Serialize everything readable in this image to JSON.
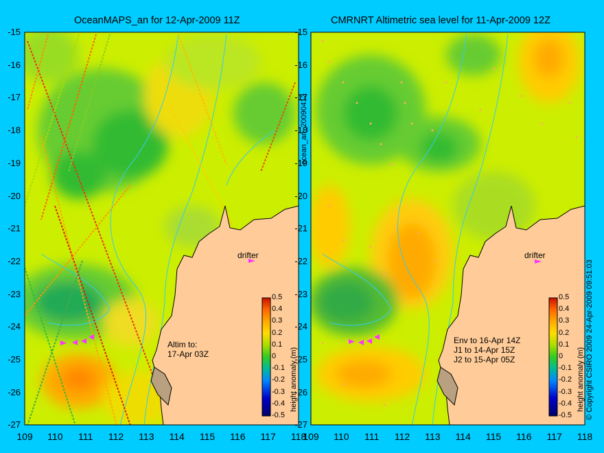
{
  "panels": [
    {
      "title": "OceanMAPS_an for 12-Apr-2009 11Z",
      "annotation_lines": [
        "Altim to:",
        "17-Apr 03Z"
      ],
      "drifter_label": "drifter"
    },
    {
      "title": "CMRNRT Altimetric sea level  for 11-Apr-2009 12Z",
      "annotation_lines": [
        "Env to 16-Apr 14Z",
        "J1 to 14-Apr 15Z",
        "J2 to 15-Apr 05Z"
      ],
      "drifter_label": "drifter"
    }
  ],
  "y_ticks": [
    "-15",
    "-16",
    "-17",
    "-18",
    "-19",
    "-20",
    "-21",
    "-22",
    "-23",
    "-24",
    "-25",
    "-26",
    "-27"
  ],
  "x_ticks_left": [
    "109",
    "110",
    "111",
    "112",
    "113",
    "114",
    "115",
    "116",
    "117",
    "118"
  ],
  "x_ticks_right": [
    "109",
    "110",
    "111",
    "112",
    "113",
    "114",
    "115",
    "116",
    "117",
    "118"
  ],
  "colorbar": {
    "title": "height anomaly (m)",
    "ticks": [
      "0.5",
      "0.4",
      "0.3",
      "0.2",
      "0.1",
      "0",
      "-0.1",
      "-0.2",
      "-0.3",
      "-0.4",
      "-0.5"
    ],
    "colors": [
      "#000080",
      "#0000cc",
      "#0044ff",
      "#0099dd",
      "#00bb88",
      "#33cc33",
      "#88dd00",
      "#ccee00",
      "#ffdd00",
      "#ffaa00",
      "#ff7700",
      "#ff4400",
      "#cc1100"
    ]
  },
  "side_text_middle": "ocean_an_20090412",
  "copyright": "© Copyright CSIRO 2009   24-Apr-2009 09:51:03",
  "colors": {
    "background": "#00ccff",
    "land": "#ffcc99",
    "sea_base": "#ccee00"
  }
}
